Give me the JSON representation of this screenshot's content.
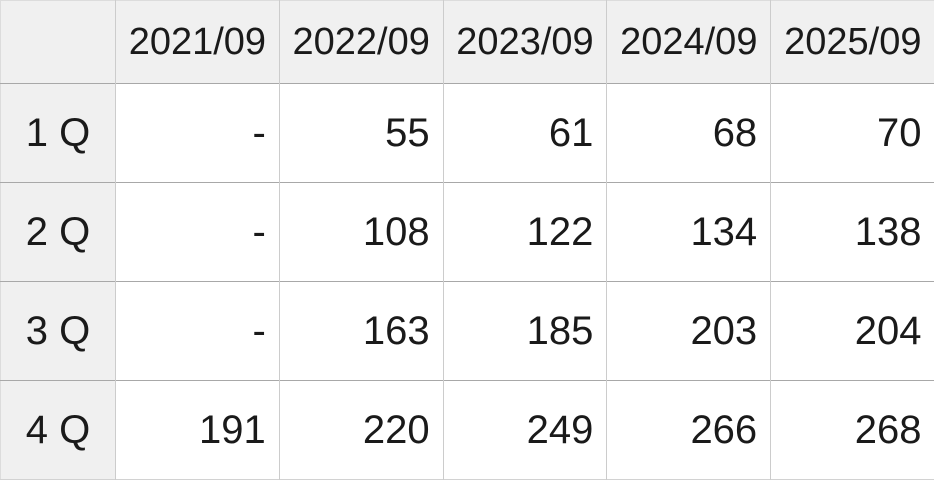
{
  "chart_data": {
    "type": "table",
    "corner_label": "",
    "columns": [
      "2021/09",
      "2022/09",
      "2023/09",
      "2024/09",
      "2025/09"
    ],
    "rows": [
      {
        "label": "1 Q",
        "values": [
          "-",
          "55",
          "61",
          "68",
          "70"
        ]
      },
      {
        "label": "2 Q",
        "values": [
          "-",
          "108",
          "122",
          "134",
          "138"
        ]
      },
      {
        "label": "3 Q",
        "values": [
          "-",
          "163",
          "185",
          "203",
          "204"
        ]
      },
      {
        "label": "4 Q",
        "values": [
          "191",
          "220",
          "249",
          "266",
          "268"
        ]
      }
    ],
    "layout_hints": {
      "header_row": "top",
      "row_header_column": "left",
      "data_alignment": "right",
      "grid": "on"
    }
  },
  "style": {
    "header_background": "#f0f0f0",
    "cell_background": "#ffffff",
    "row_border_color": "#a8a8a8",
    "column_border_color": "#cccccc",
    "outer_border_color": "#dcdcdc",
    "text_color": "#1a1a1a"
  }
}
